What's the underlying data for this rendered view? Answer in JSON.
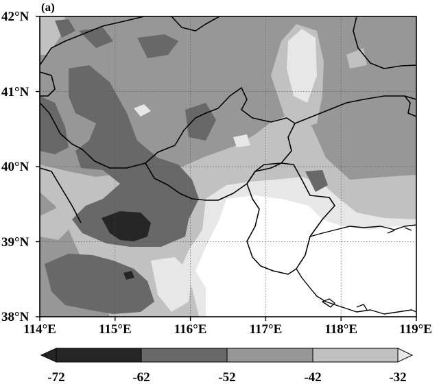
{
  "panel_label": "(a)",
  "latitude_labels": [
    "42°N",
    "41°N",
    "40°N",
    "39°N",
    "38°N"
  ],
  "longitude_labels": [
    "114°E",
    "115°E",
    "116°E",
    "117°E",
    "118°E",
    "119°E"
  ],
  "colorbar": {
    "labels": [
      "-72",
      "-62",
      "-52",
      "-42",
      "-32"
    ],
    "colors": [
      "#262626",
      "#686868",
      "#979797",
      "#c1c1c1",
      "#e7e7e7"
    ],
    "extend": "both"
  },
  "background_color": "#ffffff"
}
